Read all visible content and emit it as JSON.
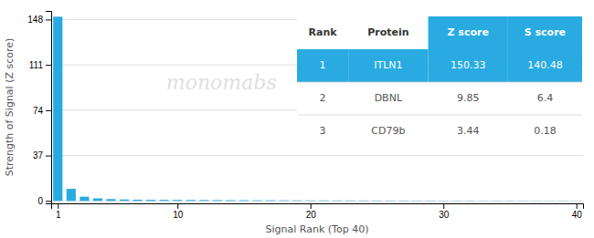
{
  "chart_data": {
    "type": "bar",
    "x": [
      1,
      2,
      3,
      4,
      5,
      6,
      7,
      8,
      9,
      10,
      11,
      12,
      13,
      14,
      15,
      16,
      17,
      18,
      19,
      20,
      21,
      22,
      23,
      24,
      25,
      26,
      27,
      28,
      29,
      30,
      31,
      32,
      33,
      34,
      35,
      36,
      37,
      38,
      39,
      40
    ],
    "values": [
      150.33,
      9.85,
      3.44,
      2.1,
      1.5,
      1.2,
      1.0,
      0.9,
      0.85,
      0.8,
      0.75,
      0.7,
      0.65,
      0.6,
      0.55,
      0.5,
      0.48,
      0.45,
      0.42,
      0.4,
      0.38,
      0.36,
      0.34,
      0.32,
      0.3,
      0.28,
      0.26,
      0.24,
      0.22,
      0.2,
      0.19,
      0.18,
      0.17,
      0.16,
      0.15,
      0.14,
      0.13,
      0.12,
      0.11,
      0.1
    ],
    "color": "#29ABE2",
    "x_label": "Signal Rank (Top 40)",
    "y_label": "Strength of Signal (Z score)",
    "xlim": [
      0.5,
      40.5
    ],
    "xticks": [
      1,
      10,
      20,
      30,
      40
    ],
    "ylim": [
      -2,
      155
    ],
    "yticks": [
      0,
      37,
      74,
      111,
      148
    ],
    "grid": true,
    "annotations": [
      {
        "text": "monomabs"
      }
    ],
    "table": {
      "headers": [
        "Rank",
        "Protein",
        "Z score",
        "S score"
      ],
      "rows": [
        [
          "1",
          "ITLN1",
          "150.33",
          "140.48"
        ],
        [
          "2",
          "DBNL",
          "9.85",
          "6.4"
        ],
        [
          "3",
          "CD79b",
          "3.44",
          "0.18"
        ]
      ]
    }
  }
}
